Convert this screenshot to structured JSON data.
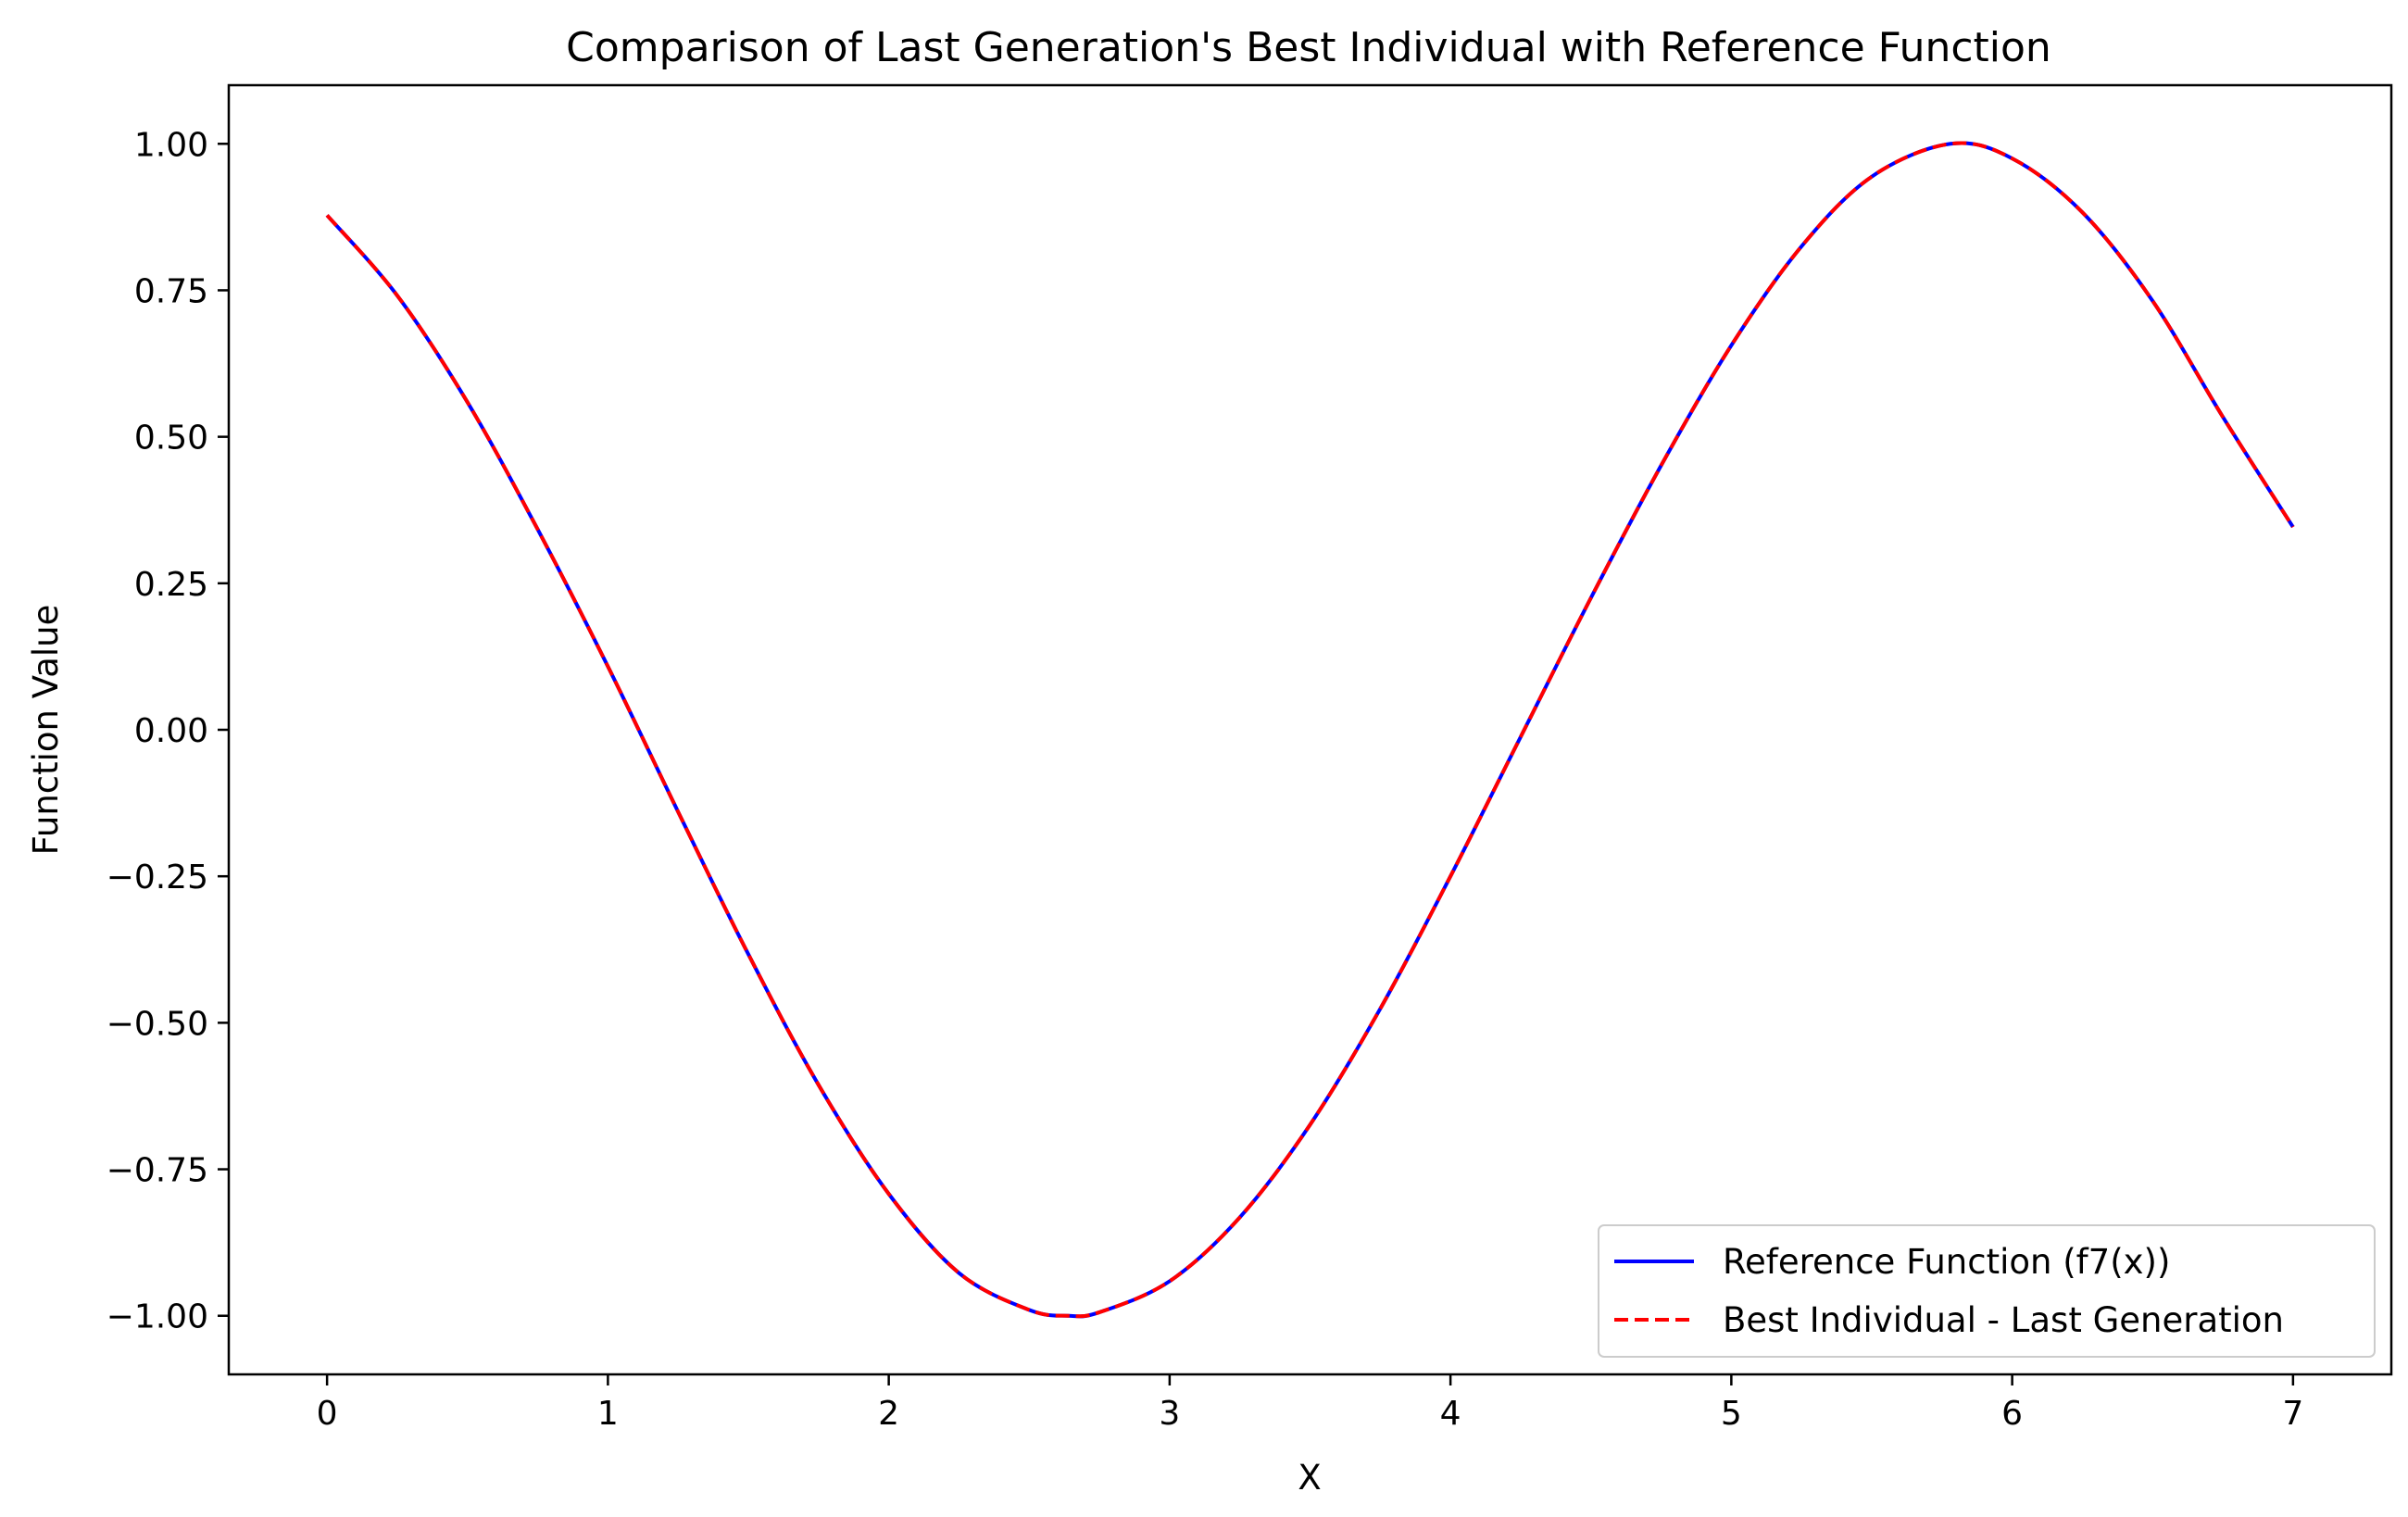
{
  "chart_data": {
    "type": "line",
    "title": "Comparison of Last Generation's Best Individual with Reference Function",
    "xlabel": "X",
    "ylabel": "Function Value",
    "xlim": [
      -0.35,
      7.35
    ],
    "ylim": [
      -1.1,
      1.1
    ],
    "xticks": [
      0,
      1,
      2,
      3,
      4,
      5,
      6,
      7
    ],
    "xtick_labels": [
      "0",
      "1",
      "2",
      "3",
      "4",
      "5",
      "6",
      "7"
    ],
    "yticks": [
      1.0,
      0.75,
      0.5,
      0.25,
      0.0,
      -0.25,
      -0.5,
      -0.75,
      -1.0
    ],
    "ytick_labels": [
      "1.00",
      "0.75",
      "0.50",
      "0.25",
      "0.00",
      "−0.25",
      "−0.50",
      "−0.75",
      "−1.00"
    ],
    "grid": false,
    "legend_position": "lower-right",
    "x": [
      0.0,
      0.25,
      0.5,
      0.75,
      1.0,
      1.25,
      1.5,
      1.75,
      2.0,
      2.25,
      2.5,
      2.64,
      2.75,
      3.0,
      3.25,
      3.5,
      3.75,
      4.0,
      4.25,
      4.5,
      4.75,
      5.0,
      5.25,
      5.5,
      5.78,
      6.0,
      6.25,
      6.5,
      6.75,
      7.0
    ],
    "series": [
      {
        "name": "Reference Function (f7(x))",
        "color": "#0000ff",
        "style": "solid",
        "values": [
          0.878,
          0.741,
          0.559,
          0.342,
          0.108,
          -0.14,
          -0.383,
          -0.606,
          -0.792,
          -0.927,
          -0.99,
          -1.0,
          -0.994,
          -0.941,
          -0.832,
          -0.674,
          -0.476,
          -0.25,
          -0.012,
          0.225,
          0.451,
          0.656,
          0.825,
          0.944,
          1.0,
          0.975,
          0.883,
          0.732,
          0.534,
          0.346
        ]
      },
      {
        "name": "Best Individual - Last Generation",
        "color": "#ff0000",
        "style": "dashed",
        "values": [
          0.878,
          0.741,
          0.559,
          0.342,
          0.108,
          -0.14,
          -0.383,
          -0.606,
          -0.792,
          -0.927,
          -0.99,
          -1.0,
          -0.994,
          -0.941,
          -0.832,
          -0.674,
          -0.476,
          -0.25,
          -0.012,
          0.225,
          0.451,
          0.656,
          0.825,
          0.944,
          1.0,
          0.975,
          0.883,
          0.732,
          0.534,
          0.346
        ]
      }
    ]
  }
}
